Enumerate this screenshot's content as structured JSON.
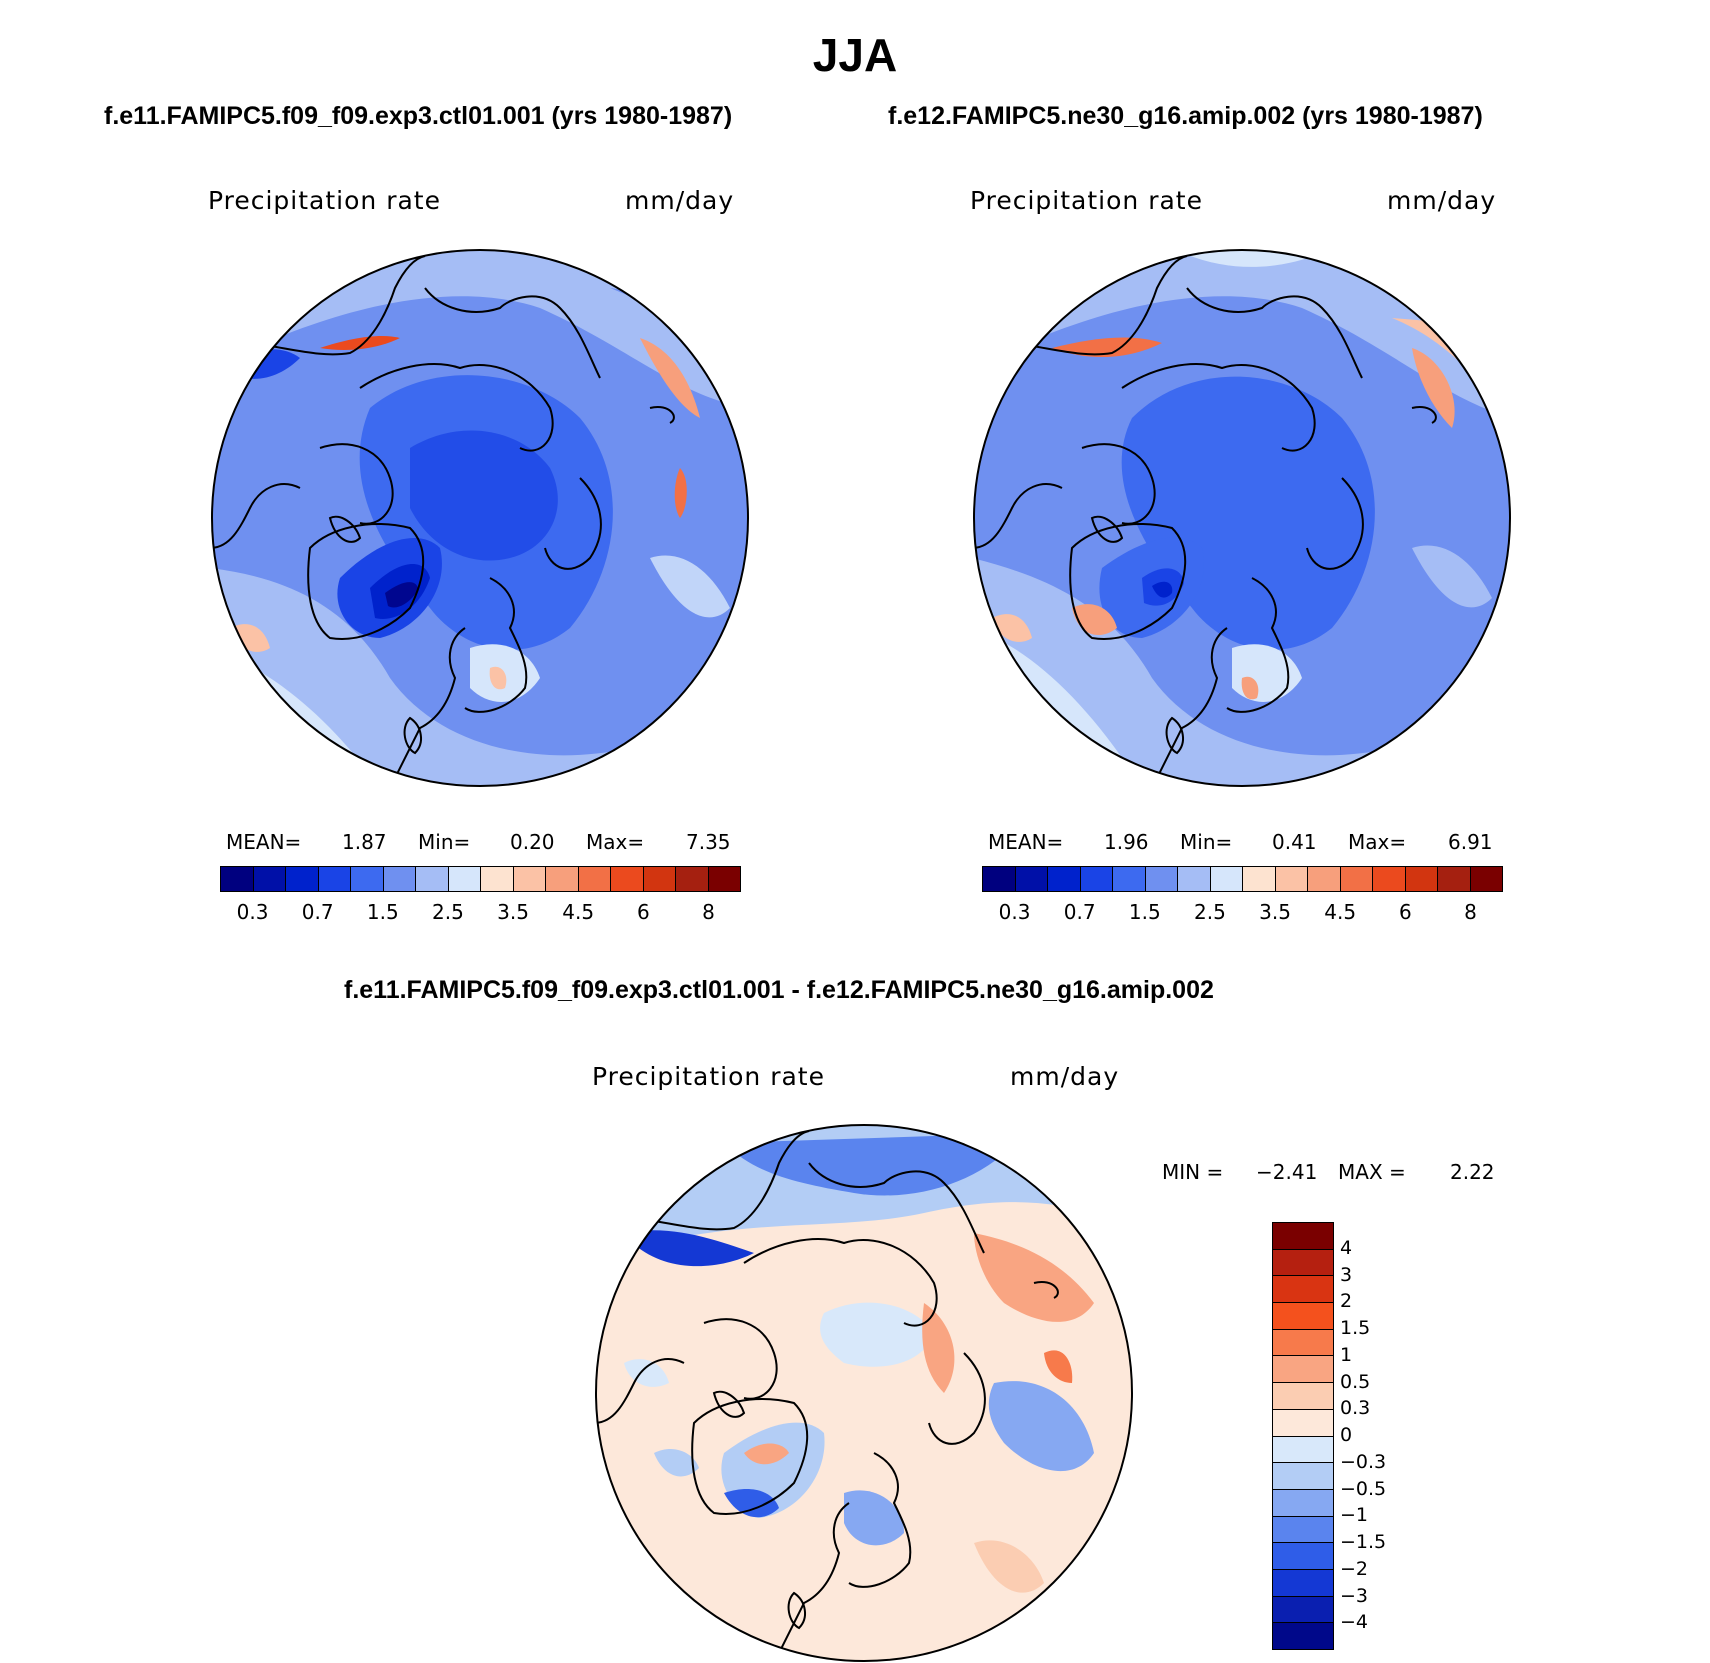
{
  "title": "JJA",
  "panels": [
    {
      "case_title": "f.e11.FAMIPC5.f09_f09.exp3.ctl01.001 (yrs 1980-1987)",
      "variable": "Precipitation rate",
      "units": "mm/day",
      "stats": {
        "mean_label": "MEAN=",
        "mean": "1.87",
        "min_label": "Min=",
        "min": "0.20",
        "max_label": "Max=",
        "max": "7.35"
      }
    },
    {
      "case_title": "f.e12.FAMIPC5.ne30_g16.amip.002 (yrs 1980-1987)",
      "variable": "Precipitation rate",
      "units": "mm/day",
      "stats": {
        "mean_label": "MEAN=",
        "mean": "1.96",
        "min_label": "Min=",
        "min": "0.41",
        "max_label": "Max=",
        "max": "6.91"
      }
    }
  ],
  "diff_panel": {
    "case_title": "f.e11.FAMIPC5.f09_f09.exp3.ctl01.001 - f.e12.FAMIPC5.ne30_g16.amip.002",
    "variable": "Precipitation rate",
    "units": "mm/day",
    "stats": {
      "min_label": "MIN =",
      "min": "−2.41",
      "max_label": "MAX =",
      "max": "2.22"
    }
  },
  "colorbar_abs": {
    "tick_labels": [
      "0.3",
      "0.7",
      "1.5",
      "2.5",
      "3.5",
      "4.5",
      "6",
      "8"
    ],
    "colors": [
      "#00007f",
      "#0010a8",
      "#0022cc",
      "#1a44e6",
      "#3d6af0",
      "#6f90f0",
      "#a5bdf5",
      "#d6e6fb",
      "#fde3d0",
      "#fbc2a6",
      "#f79f7c",
      "#f27046",
      "#eb4a1e",
      "#d23510",
      "#a52010",
      "#7a0000"
    ]
  },
  "colorbar_diff": {
    "tick_labels": [
      "4",
      "3",
      "2",
      "1.5",
      "1",
      "0.5",
      "0.3",
      "0",
      "−0.3",
      "−0.5",
      "−1",
      "−1.5",
      "−2",
      "−3",
      "−4"
    ],
    "colors": [
      "#7a0000",
      "#b52010",
      "#d93412",
      "#f4511d",
      "#f77a4b",
      "#f9a582",
      "#fbcdb2",
      "#fde8da",
      "#d8e8fa",
      "#b3cdf5",
      "#86a8f2",
      "#5a84ee",
      "#2f5de8",
      "#1438d4",
      "#0a1fb0",
      "#00088a"
    ]
  }
}
